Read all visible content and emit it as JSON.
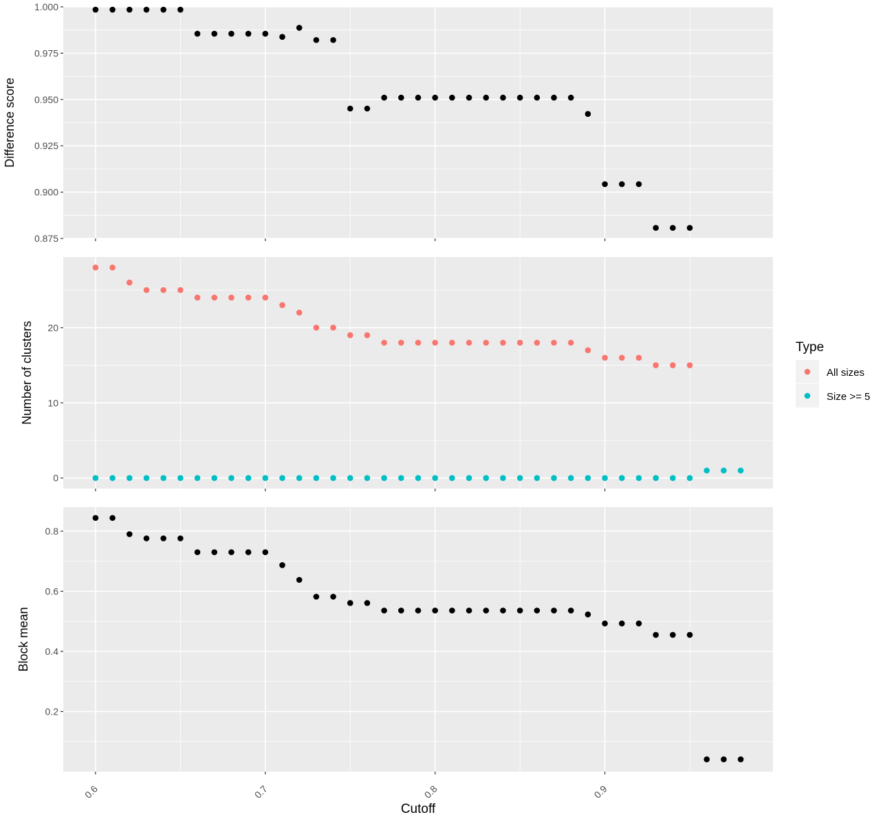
{
  "chart_data": [
    {
      "type": "scatter",
      "ylabel": "Difference score",
      "xlim": [
        0.581,
        0.999
      ],
      "ylim": [
        0.875,
        1.0
      ],
      "y_ticks": [
        "0.875",
        "0.900",
        "0.925",
        "0.950",
        "0.975",
        "1.000"
      ],
      "grid": true,
      "series": [
        {
          "color": "#000000",
          "x": [
            0.6,
            0.61,
            0.62,
            0.63,
            0.64,
            0.65,
            0.66,
            0.67,
            0.68,
            0.69,
            0.7,
            0.71,
            0.72,
            0.73,
            0.74,
            0.75,
            0.76,
            0.77,
            0.78,
            0.79,
            0.8,
            0.81,
            0.82,
            0.83,
            0.84,
            0.85,
            0.86,
            0.87,
            0.88,
            0.89,
            0.9,
            0.91,
            0.92,
            0.93,
            0.94,
            0.95
          ],
          "y": [
            0.9985,
            0.9985,
            0.9985,
            0.9985,
            0.9985,
            0.9985,
            0.9855,
            0.9855,
            0.9855,
            0.9855,
            0.9855,
            0.9838,
            0.9887,
            0.9821,
            0.9821,
            0.9451,
            0.9451,
            0.951,
            0.951,
            0.951,
            0.951,
            0.951,
            0.951,
            0.951,
            0.951,
            0.951,
            0.951,
            0.951,
            0.951,
            0.9422,
            0.9043,
            0.9043,
            0.9043,
            0.8807,
            0.8807,
            0.8807
          ]
        }
      ]
    },
    {
      "type": "scatter",
      "ylabel": "Number of clusters",
      "xlim": [
        0.581,
        0.999
      ],
      "ylim": [
        -1.4,
        29.4
      ],
      "y_ticks": [
        "0",
        "10",
        "20"
      ],
      "grid": true,
      "legend": {
        "title": "Type",
        "placement": "right",
        "entries": [
          {
            "label": "All sizes",
            "color": "#F8766D"
          },
          {
            "label": "Size >= 5",
            "color": "#00BFC4"
          }
        ]
      },
      "series": [
        {
          "name": "All sizes",
          "color": "#F8766D",
          "x": [
            0.6,
            0.61,
            0.62,
            0.63,
            0.64,
            0.65,
            0.66,
            0.67,
            0.68,
            0.69,
            0.7,
            0.71,
            0.72,
            0.73,
            0.74,
            0.75,
            0.76,
            0.77,
            0.78,
            0.79,
            0.8,
            0.81,
            0.82,
            0.83,
            0.84,
            0.85,
            0.86,
            0.87,
            0.88,
            0.89,
            0.9,
            0.91,
            0.92,
            0.93,
            0.94,
            0.95
          ],
          "y": [
            28,
            28,
            26,
            25,
            25,
            25,
            24,
            24,
            24,
            24,
            24,
            23,
            22,
            20,
            20,
            19,
            19,
            18,
            18,
            18,
            18,
            18,
            18,
            18,
            18,
            18,
            18,
            18,
            18,
            17,
            16,
            16,
            16,
            15,
            15,
            15
          ]
        },
        {
          "name": "Size >= 5",
          "color": "#00BFC4",
          "x": [
            0.6,
            0.61,
            0.62,
            0.63,
            0.64,
            0.65,
            0.66,
            0.67,
            0.68,
            0.69,
            0.7,
            0.71,
            0.72,
            0.73,
            0.74,
            0.75,
            0.76,
            0.77,
            0.78,
            0.79,
            0.8,
            0.81,
            0.82,
            0.83,
            0.84,
            0.85,
            0.86,
            0.87,
            0.88,
            0.89,
            0.9,
            0.91,
            0.92,
            0.93,
            0.94,
            0.95,
            0.96,
            0.97,
            0.98
          ],
          "y": [
            0,
            0,
            0,
            0,
            0,
            0,
            0,
            0,
            0,
            0,
            0,
            0,
            0,
            0,
            0,
            0,
            0,
            0,
            0,
            0,
            0,
            0,
            0,
            0,
            0,
            0,
            0,
            0,
            0,
            0,
            0,
            0,
            0,
            0,
            0,
            0,
            1,
            1,
            1
          ]
        }
      ]
    },
    {
      "type": "scatter",
      "ylabel": "Block mean",
      "xlabel": "Cutoff",
      "xlim": [
        0.581,
        0.999
      ],
      "ylim": [
        0.0,
        0.88
      ],
      "x_ticks": [
        "0.6",
        "0.7",
        "0.8",
        "0.9"
      ],
      "y_ticks": [
        "0.2",
        "0.4",
        "0.6",
        "0.8"
      ],
      "grid": true,
      "series": [
        {
          "color": "#000000",
          "x": [
            0.6,
            0.61,
            0.62,
            0.63,
            0.64,
            0.65,
            0.66,
            0.67,
            0.68,
            0.69,
            0.7,
            0.71,
            0.72,
            0.73,
            0.74,
            0.75,
            0.76,
            0.77,
            0.78,
            0.79,
            0.8,
            0.81,
            0.82,
            0.83,
            0.84,
            0.85,
            0.86,
            0.87,
            0.88,
            0.89,
            0.9,
            0.91,
            0.92,
            0.93,
            0.94,
            0.95,
            0.96,
            0.97,
            0.98
          ],
          "y": [
            0.844,
            0.844,
            0.79,
            0.776,
            0.776,
            0.776,
            0.73,
            0.73,
            0.73,
            0.73,
            0.73,
            0.687,
            0.638,
            0.582,
            0.582,
            0.561,
            0.561,
            0.536,
            0.536,
            0.536,
            0.536,
            0.536,
            0.536,
            0.536,
            0.536,
            0.536,
            0.536,
            0.536,
            0.536,
            0.523,
            0.493,
            0.493,
            0.493,
            0.455,
            0.455,
            0.455,
            0.041,
            0.041,
            0.041
          ]
        }
      ]
    }
  ]
}
